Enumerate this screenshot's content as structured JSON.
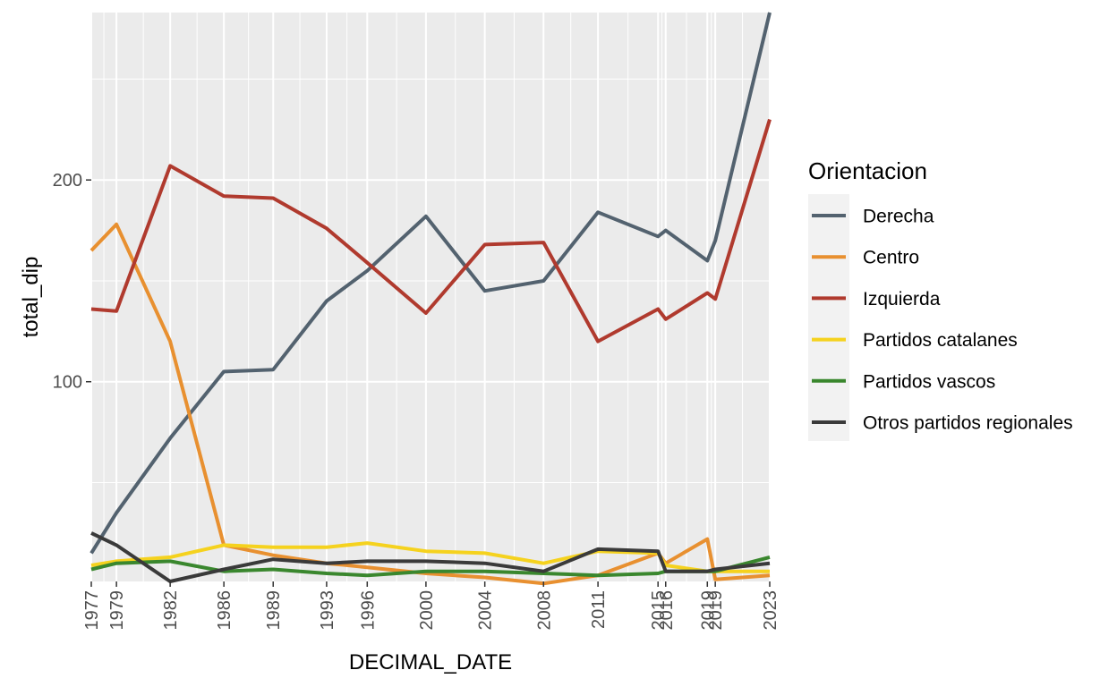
{
  "chart_data": {
    "type": "line",
    "xlabel": "DECIMAL_DATE",
    "ylabel": "total_dip",
    "x": [
      1977.46,
      1979.17,
      1982.82,
      1986.47,
      1989.82,
      1993.45,
      1996.21,
      2000.2,
      2004.2,
      2008.19,
      2011.89,
      2015.97,
      2016.49,
      2019.32,
      2019.86,
      2023.56
    ],
    "x_tick_labels": [
      "1977",
      "1979",
      "1982",
      "1986",
      "1989",
      "1993",
      "1996",
      "2000",
      "2004",
      "2008",
      "2011",
      "2015",
      "2016",
      "2019",
      "2019",
      "2023"
    ],
    "y_ticks": [
      100,
      200
    ],
    "ylim": [
      1,
      283
    ],
    "grid": true,
    "legend": {
      "title": "Orientacion",
      "position": "right"
    },
    "series": [
      {
        "name": "Derecha",
        "color": "#53626f",
        "values": [
          15,
          35,
          72,
          105,
          106,
          140,
          155,
          182,
          145,
          150,
          184,
          172,
          175,
          160,
          170,
          283
        ]
      },
      {
        "name": "Centro",
        "color": "#e89030",
        "values": [
          165,
          178,
          120,
          19,
          14,
          10,
          8,
          5,
          3,
          0,
          4,
          15,
          10,
          22,
          2,
          4
        ]
      },
      {
        "name": "Izquierda",
        "color": "#b03a2e",
        "values": [
          136,
          135,
          207,
          192,
          191,
          176,
          159,
          134,
          168,
          169,
          120,
          136,
          131,
          144,
          141,
          230
        ]
      },
      {
        "name": "Partidos catalanes",
        "color": "#f5d21e",
        "values": [
          9,
          11,
          13,
          19,
          18,
          18,
          20,
          16,
          15,
          10,
          16,
          15,
          9,
          6,
          6,
          6
        ]
      },
      {
        "name": "Partidos vascos",
        "color": "#3a872e",
        "values": [
          7,
          10,
          11,
          6,
          7,
          5,
          4,
          6,
          6,
          5,
          4,
          5,
          6,
          6,
          6,
          13
        ]
      },
      {
        "name": "Otros partidos regionales",
        "color": "#3a3a3a",
        "values": [
          25,
          19,
          1,
          7,
          12,
          10,
          11,
          11,
          10,
          6,
          17,
          16,
          6,
          6,
          7,
          10
        ]
      }
    ]
  }
}
